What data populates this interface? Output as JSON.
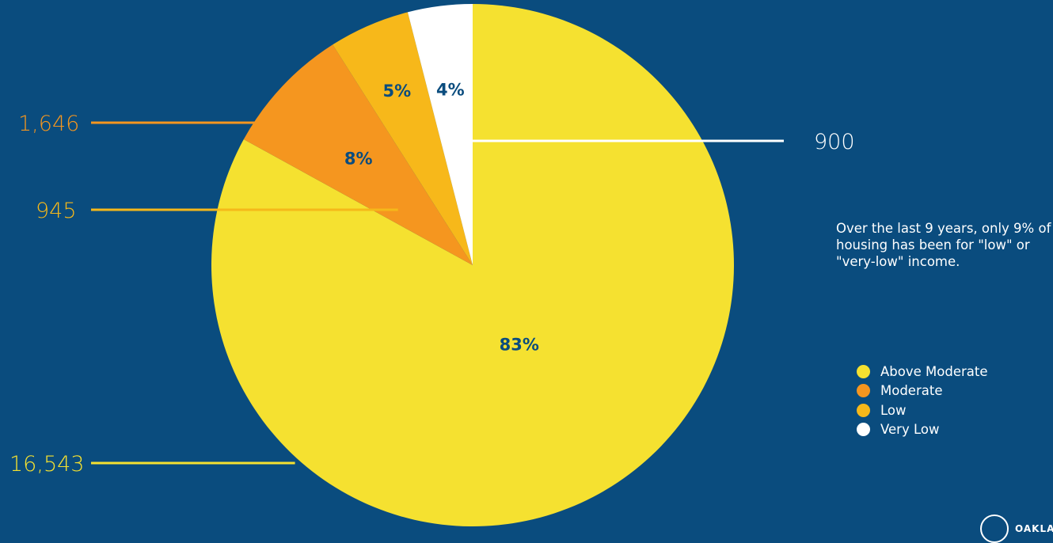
{
  "chart_data": {
    "type": "pie",
    "slices": [
      {
        "label": "Above Moderate",
        "count": "16,543",
        "percent_label": "83%",
        "value": 83,
        "color": "#f5e130"
      },
      {
        "label": "Moderate",
        "count": "1,646",
        "percent_label": "8%",
        "value": 8,
        "color": "#f5961f"
      },
      {
        "label": "Low",
        "count": "945",
        "percent_label": "5%",
        "value": 5,
        "color": "#f7b81a"
      },
      {
        "label": "Very Low",
        "count": "900",
        "percent_label": "4%",
        "value": 4,
        "color": "#ffffff"
      }
    ],
    "legend": [
      "Above Moderate",
      "Moderate",
      "Low",
      "Very Low"
    ],
    "legend_position": "right",
    "start": "12 o'clock",
    "direction": "counter-clockwise from Very Low"
  },
  "note": "Over the last 9 years, only 9% of housing has been for \"low\" or \"very-low\" income.",
  "logo_text": "OAKLA",
  "colors": {
    "background": "#0a4c7e",
    "label_text": "#0a4c7e"
  }
}
